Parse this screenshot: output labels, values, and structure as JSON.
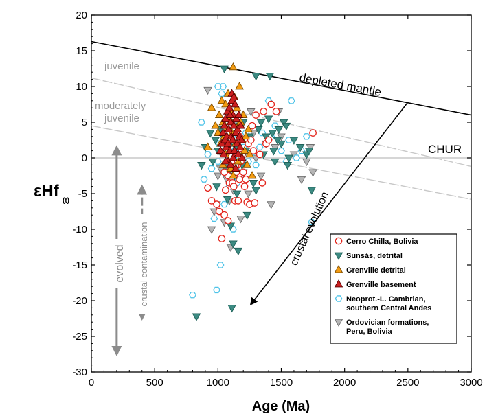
{
  "chart_data": {
    "type": "scatter",
    "xlabel": "Age (Ma)",
    "ylabel": "εHf",
    "ylabel_sub": "(t)",
    "xlim": [
      0,
      3000
    ],
    "ylim": [
      -30,
      20
    ],
    "xticks": [
      0,
      500,
      1000,
      1500,
      2000,
      2500,
      3000
    ],
    "yticks": [
      -30,
      -25,
      -20,
      -15,
      -10,
      -5,
      0,
      5,
      10,
      15,
      20
    ],
    "grid": false,
    "legend_position": "bottom-right",
    "reference_lines": [
      {
        "name": "depleted mantle",
        "points": [
          [
            0,
            16.3
          ],
          [
            3000,
            6
          ]
        ],
        "color": "#000000",
        "style": "solid"
      },
      {
        "name": "CHUR",
        "points": [
          [
            0,
            0
          ],
          [
            3000,
            0
          ]
        ],
        "color": "#c8c8c8",
        "style": "solid"
      },
      {
        "name": "juvenile",
        "points": [
          [
            0,
            11.2
          ],
          [
            3000,
            -1.2
          ]
        ],
        "color": "#c8c8c8",
        "style": "dashed"
      },
      {
        "name": "moderately juvenile",
        "points": [
          [
            0,
            4.5
          ],
          [
            3000,
            -5.8
          ]
        ],
        "color": "#c8c8c8",
        "style": "dashed"
      }
    ],
    "annotations": {
      "depleted_mantle": "depleted mantle",
      "chur": "CHUR",
      "juvenile": "juvenile",
      "moderately_juvenile_1": "moderately",
      "moderately_juvenile_2": "juvenile",
      "evolved": "evolved",
      "crustal_contamination": "crustal contamination",
      "crustal_evolution": "crustal evolution"
    },
    "arrows": [
      {
        "name": "crustal-evolution-arrow",
        "from": [
          2500,
          7.8
        ],
        "to": [
          1260,
          -20.5
        ]
      },
      {
        "name": "evolved-arrow",
        "from": [
          200,
          1.5
        ],
        "to": [
          200,
          -27.5
        ]
      },
      {
        "name": "crustal-contamination-arrow",
        "from": [
          400,
          -4
        ],
        "to": [
          400,
          -22.5
        ]
      }
    ],
    "series": [
      {
        "name": "Cerro Chilla, Bolivia",
        "marker": "circle",
        "color": "#e32219",
        "fill": "#ffffff",
        "points": [
          [
            920,
            -4.2
          ],
          [
            950,
            -6
          ],
          [
            990,
            -6.5
          ],
          [
            1010,
            -7.5
          ],
          [
            1030,
            -11.3
          ],
          [
            1050,
            -8
          ],
          [
            1060,
            -4.5
          ],
          [
            1080,
            -2.5
          ],
          [
            1090,
            -3.5
          ],
          [
            1100,
            -1.5
          ],
          [
            1105,
            -0.5
          ],
          [
            1115,
            -3.5
          ],
          [
            1125,
            -4
          ],
          [
            1135,
            -6
          ],
          [
            1145,
            -2
          ],
          [
            1155,
            -1
          ],
          [
            1160,
            -6
          ],
          [
            1170,
            -3
          ],
          [
            1180,
            -0.5
          ],
          [
            1190,
            0.5
          ],
          [
            1200,
            -2
          ],
          [
            1210,
            -4
          ],
          [
            1220,
            -3
          ],
          [
            1230,
            -6.2
          ],
          [
            1240,
            2
          ],
          [
            1250,
            -6.5
          ],
          [
            1260,
            2.5
          ],
          [
            1270,
            4.5
          ],
          [
            1290,
            -6.3
          ],
          [
            1300,
            6
          ],
          [
            1330,
            0.5
          ],
          [
            1350,
            -3.5
          ],
          [
            1360,
            6.5
          ],
          [
            1380,
            2
          ],
          [
            1400,
            2.5
          ],
          [
            1420,
            7.5
          ],
          [
            1460,
            6.5
          ],
          [
            1750,
            3.5
          ],
          [
            1110,
            0.2
          ],
          [
            1140,
            -1.2
          ],
          [
            1170,
            3
          ],
          [
            1050,
            -2
          ],
          [
            1080,
            -8.8
          ],
          [
            1280,
            1
          ]
        ]
      },
      {
        "name": "Sunsás, detrital",
        "marker": "triangle-down",
        "color": "#1f6259",
        "fill": "#3c8a82",
        "points": [
          [
            830,
            -22.2
          ],
          [
            870,
            -1
          ],
          [
            900,
            1.5
          ],
          [
            940,
            3.5
          ],
          [
            960,
            -0.5
          ],
          [
            980,
            2.5
          ],
          [
            990,
            -4
          ],
          [
            1000,
            1
          ],
          [
            1020,
            4
          ],
          [
            1040,
            3
          ],
          [
            1050,
            12.5
          ],
          [
            1060,
            -1.5
          ],
          [
            1075,
            -5.8
          ],
          [
            1085,
            -2
          ],
          [
            1095,
            2
          ],
          [
            1100,
            -9.5
          ],
          [
            1110,
            -21
          ],
          [
            1120,
            -12
          ],
          [
            1130,
            -2.5
          ],
          [
            1140,
            1.5
          ],
          [
            1150,
            -5
          ],
          [
            1160,
            -13
          ],
          [
            1170,
            4.5
          ],
          [
            1180,
            0.5
          ],
          [
            1190,
            -1
          ],
          [
            1200,
            5
          ],
          [
            1220,
            1
          ],
          [
            1250,
            3
          ],
          [
            1300,
            11.5
          ],
          [
            1320,
            4
          ],
          [
            1340,
            5
          ],
          [
            1360,
            0.5
          ],
          [
            1380,
            3
          ],
          [
            1400,
            5.5
          ],
          [
            1410,
            11.5
          ],
          [
            1430,
            3.5
          ],
          [
            1440,
            1
          ],
          [
            1450,
            -0.5
          ],
          [
            1470,
            2.5
          ],
          [
            1480,
            4
          ],
          [
            1500,
            2
          ],
          [
            1520,
            5
          ],
          [
            1540,
            4.5
          ],
          [
            1560,
            0
          ],
          [
            1600,
            2.5
          ],
          [
            1650,
            1.5
          ],
          [
            1700,
            0.5
          ],
          [
            1720,
            1
          ],
          [
            1740,
            -4.5
          ],
          [
            1550,
            -1
          ],
          [
            1280,
            -3.5
          ],
          [
            1230,
            -8
          ],
          [
            1300,
            -4.5
          ]
        ]
      },
      {
        "name": "Grenville detrital",
        "marker": "triangle-up",
        "color": "#7a4a00",
        "fill": "#f39c12",
        "points": [
          [
            920,
            1.5
          ],
          [
            950,
            7
          ],
          [
            980,
            4.5
          ],
          [
            1000,
            3.5
          ],
          [
            1010,
            6
          ],
          [
            1020,
            2
          ],
          [
            1030,
            8
          ],
          [
            1040,
            5
          ],
          [
            1050,
            3
          ],
          [
            1060,
            7.5
          ],
          [
            1070,
            4
          ],
          [
            1080,
            9
          ],
          [
            1090,
            5.5
          ],
          [
            1100,
            6.5
          ],
          [
            1110,
            3.5
          ],
          [
            1120,
            12.7
          ],
          [
            1130,
            8.5
          ],
          [
            1140,
            2
          ],
          [
            1150,
            7
          ],
          [
            1160,
            4.5
          ],
          [
            1170,
            10
          ],
          [
            1180,
            5
          ],
          [
            1190,
            2.5
          ],
          [
            1200,
            6
          ],
          [
            1210,
            1
          ],
          [
            1220,
            3
          ],
          [
            1230,
            -1
          ],
          [
            1240,
            4
          ],
          [
            1250,
            0.5
          ],
          [
            1100,
            -1.5
          ],
          [
            1120,
            -2.5
          ],
          [
            1060,
            0.5
          ],
          [
            1160,
            -0.5
          ],
          [
            1040,
            -1
          ],
          [
            1270,
            -2.5
          ]
        ]
      },
      {
        "name": "Grenville basement",
        "marker": "triangle-up",
        "color": "#5a0000",
        "fill": "#cc1f1f",
        "points": [
          [
            1020,
            1
          ],
          [
            1030,
            2
          ],
          [
            1040,
            3.5
          ],
          [
            1045,
            0.5
          ],
          [
            1050,
            4.5
          ],
          [
            1055,
            2.5
          ],
          [
            1060,
            5.5
          ],
          [
            1065,
            1.5
          ],
          [
            1070,
            3
          ],
          [
            1075,
            6.5
          ],
          [
            1080,
            2
          ],
          [
            1085,
            4
          ],
          [
            1090,
            7
          ],
          [
            1095,
            1
          ],
          [
            1100,
            5
          ],
          [
            1105,
            3
          ],
          [
            1110,
            8
          ],
          [
            1115,
            2.5
          ],
          [
            1120,
            6
          ],
          [
            1125,
            4.5
          ],
          [
            1130,
            1
          ],
          [
            1135,
            7.5
          ],
          [
            1140,
            3.5
          ],
          [
            1145,
            5.5
          ],
          [
            1150,
            2
          ],
          [
            1155,
            4
          ],
          [
            1160,
            0.5
          ],
          [
            1165,
            6
          ],
          [
            1170,
            3
          ],
          [
            1175,
            1.5
          ],
          [
            1180,
            4.5
          ],
          [
            1185,
            2.5
          ],
          [
            1190,
            0
          ],
          [
            1080,
            -0.5
          ],
          [
            1100,
            -1
          ],
          [
            1120,
            0
          ],
          [
            1060,
            -0.5
          ],
          [
            1140,
            -1.5
          ],
          [
            1110,
            9
          ],
          [
            1125,
            8.5
          ],
          [
            1095,
            6
          ]
        ]
      },
      {
        "name": "Neoprot.-L. Cambrian, southern Central Andes",
        "marker": "hexagon",
        "color": "#4fc3e8",
        "fill": "#ffffff",
        "points": [
          [
            800,
            -19.2
          ],
          [
            870,
            5
          ],
          [
            890,
            -3
          ],
          [
            920,
            0.5
          ],
          [
            950,
            -1.5
          ],
          [
            970,
            -8.5
          ],
          [
            990,
            -18.5
          ],
          [
            1000,
            -0.5
          ],
          [
            1010,
            2
          ],
          [
            1020,
            -15
          ],
          [
            1030,
            9
          ],
          [
            1040,
            10
          ],
          [
            1050,
            -6.5
          ],
          [
            1060,
            4
          ],
          [
            1070,
            -0.5
          ],
          [
            1080,
            6
          ],
          [
            1090,
            -4
          ],
          [
            1100,
            2.5
          ],
          [
            1110,
            -3
          ],
          [
            1120,
            -10
          ],
          [
            1130,
            1
          ],
          [
            1140,
            -1.5
          ],
          [
            1150,
            -3.5
          ],
          [
            1160,
            3
          ],
          [
            1170,
            0
          ],
          [
            1180,
            -2.5
          ],
          [
            1190,
            5
          ],
          [
            1200,
            1.5
          ],
          [
            1220,
            3.5
          ],
          [
            1240,
            -0.5
          ],
          [
            1260,
            0.5
          ],
          [
            1300,
            -1
          ],
          [
            1330,
            1.5
          ],
          [
            1350,
            3.5
          ],
          [
            1400,
            8
          ],
          [
            1420,
            3
          ],
          [
            1450,
            4.5
          ],
          [
            1500,
            1
          ],
          [
            1540,
            -0.5
          ],
          [
            1560,
            2.5
          ],
          [
            1580,
            8
          ],
          [
            1620,
            0
          ],
          [
            1660,
            1
          ],
          [
            1700,
            3
          ],
          [
            1740,
            -9
          ],
          [
            1000,
            10
          ]
        ]
      },
      {
        "name": "Ordovician formations, Peru, Bolivia",
        "marker": "triangle-down",
        "color": "#6e6e6e",
        "fill": "#b5b5b5",
        "points": [
          [
            920,
            9.5
          ],
          [
            950,
            -10
          ],
          [
            970,
            -7.5
          ],
          [
            990,
            -6.5
          ],
          [
            1000,
            -2.5
          ],
          [
            1010,
            1
          ],
          [
            1020,
            -1.5
          ],
          [
            1040,
            3
          ],
          [
            1050,
            -9
          ],
          [
            1060,
            0.5
          ],
          [
            1070,
            -3
          ],
          [
            1080,
            2
          ],
          [
            1090,
            -6
          ],
          [
            1100,
            -12.5
          ],
          [
            1120,
            -4.5
          ],
          [
            1140,
            5
          ],
          [
            1160,
            0.5
          ],
          [
            1180,
            -8.5
          ],
          [
            1200,
            -2
          ],
          [
            1220,
            1
          ],
          [
            1240,
            -5
          ],
          [
            1260,
            6.5
          ],
          [
            1280,
            3.5
          ],
          [
            1300,
            0
          ],
          [
            1340,
            -2.5
          ],
          [
            1380,
            2
          ],
          [
            1420,
            -6.5
          ],
          [
            1450,
            1.5
          ],
          [
            1480,
            6.5
          ],
          [
            1500,
            3
          ],
          [
            1550,
            -1
          ],
          [
            1600,
            0.5
          ],
          [
            1660,
            -3
          ],
          [
            1700,
            -0.5
          ],
          [
            1730,
            1.5
          ],
          [
            1750,
            -2
          ]
        ]
      }
    ]
  }
}
